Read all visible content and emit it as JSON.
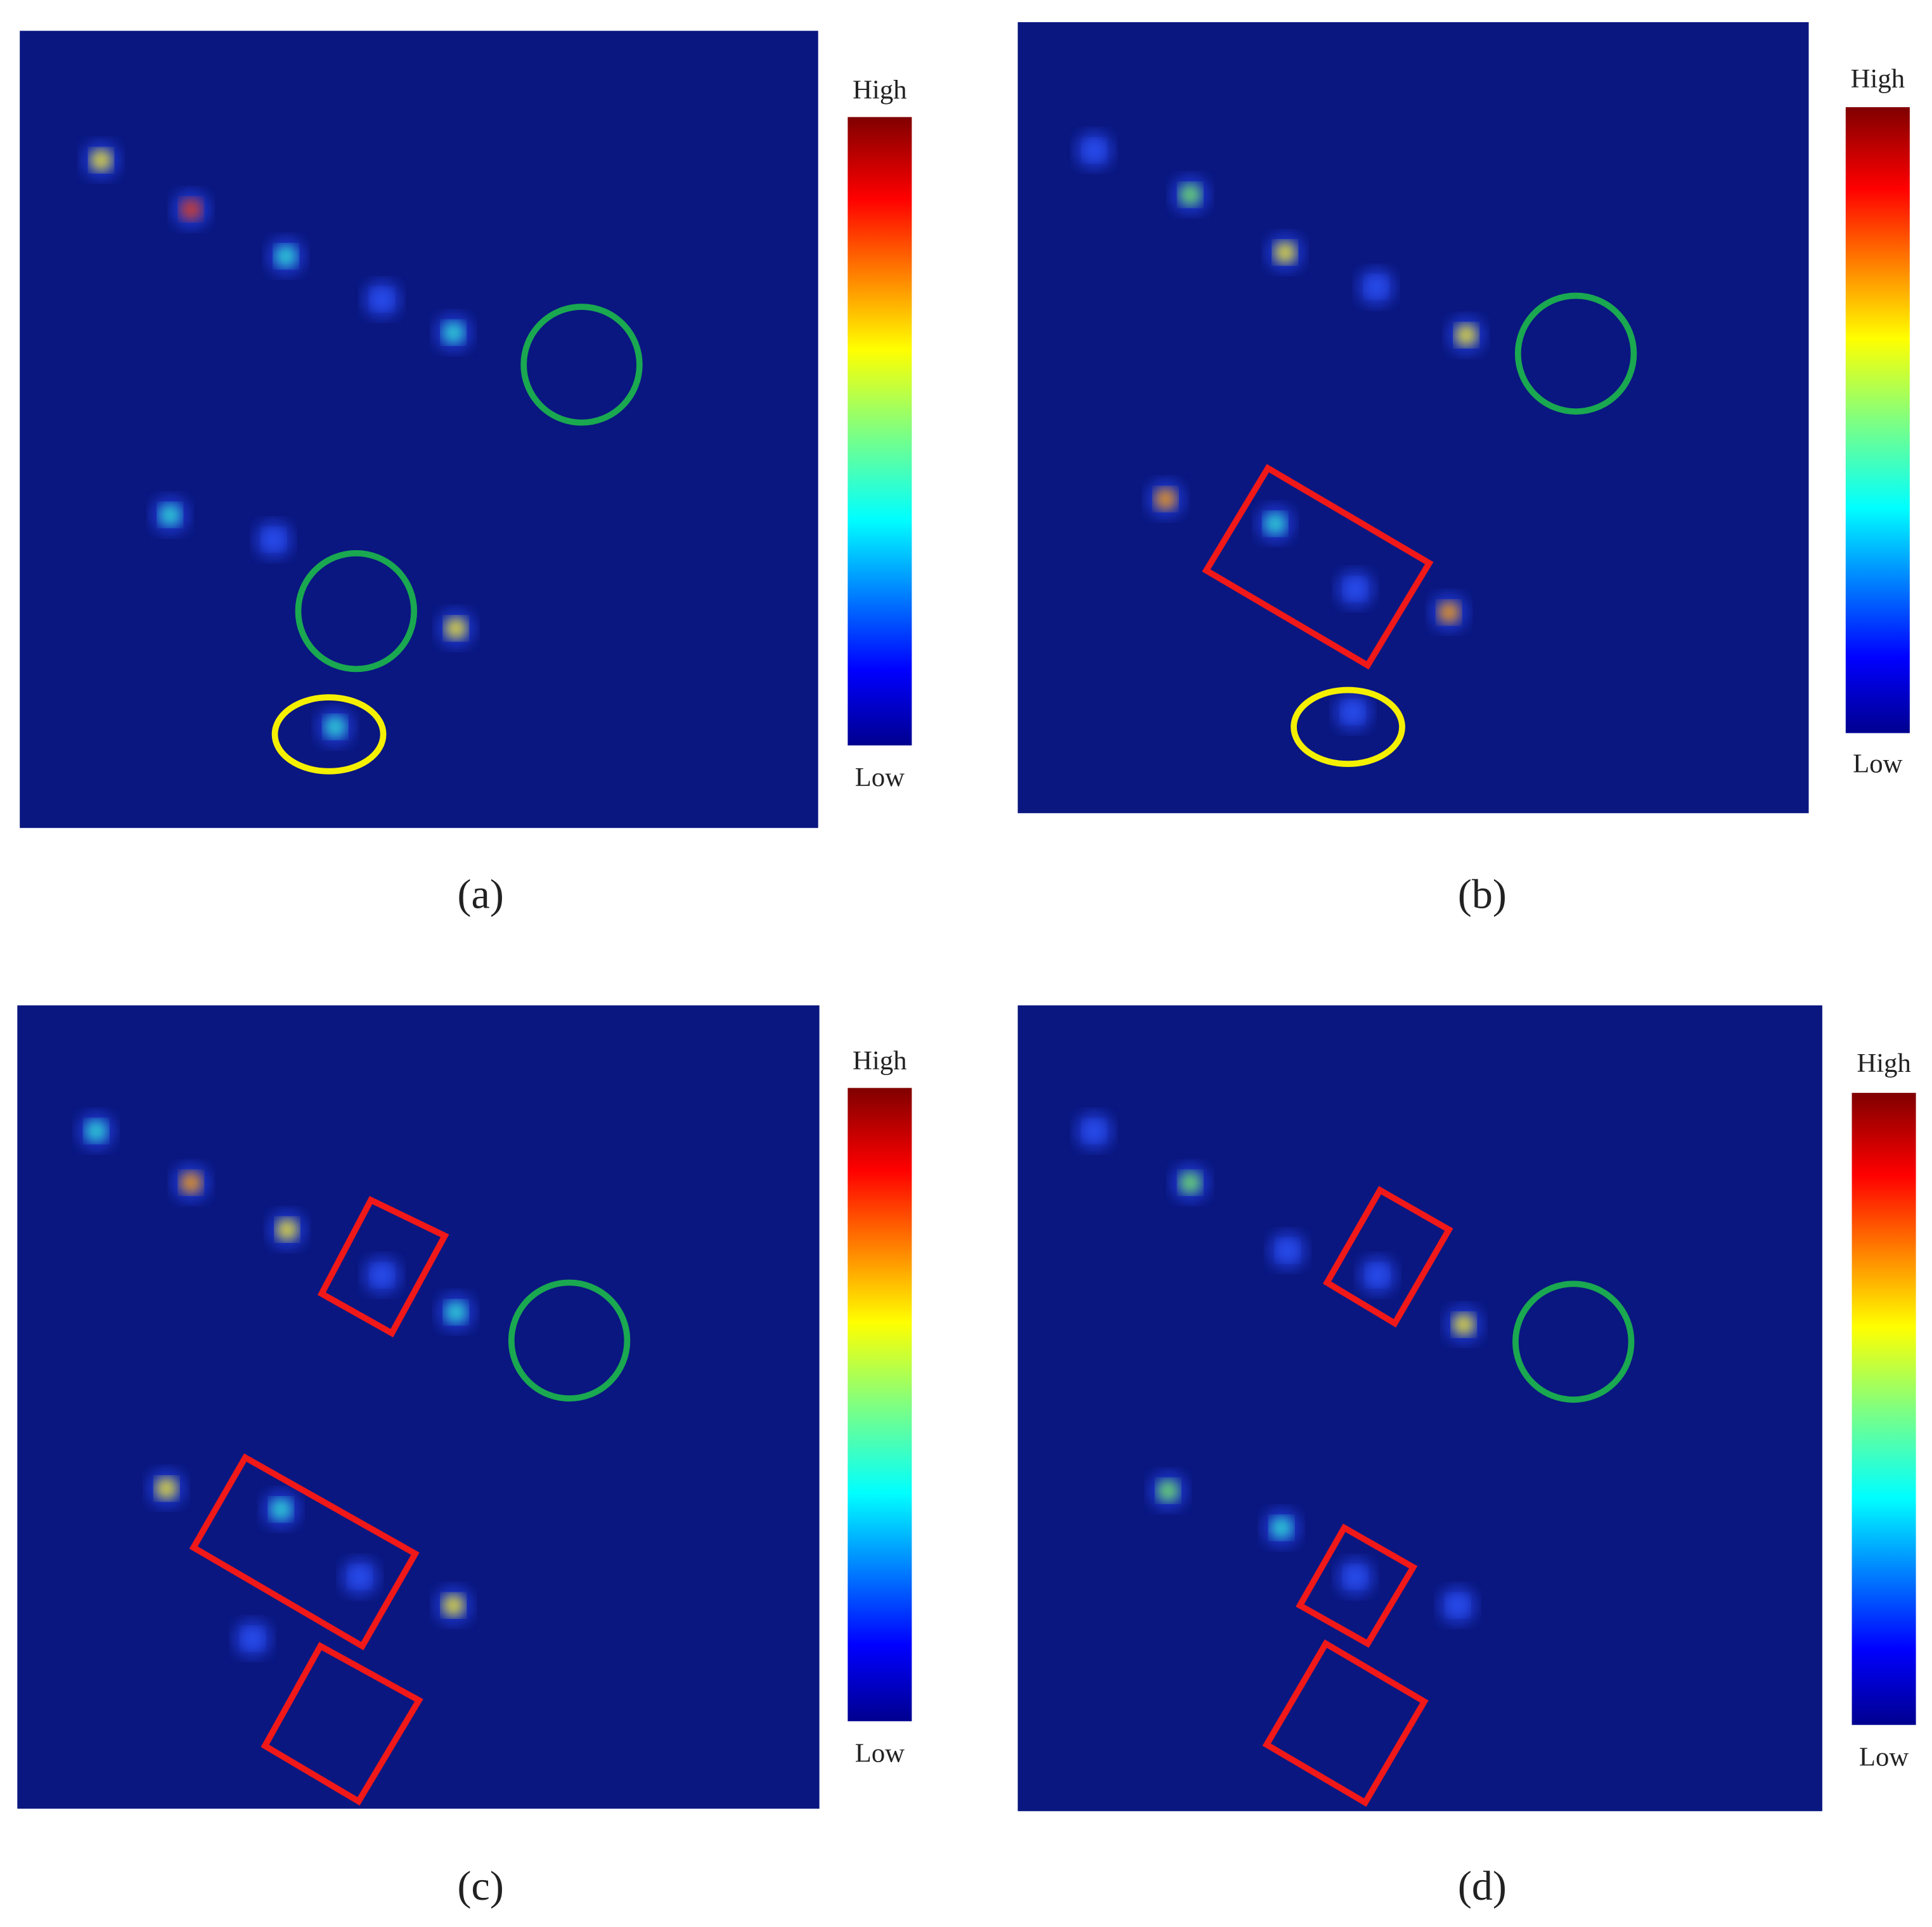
{
  "panels": [
    {
      "caption": "(a)",
      "colorbar": {
        "high": "High",
        "low": "Low"
      }
    },
    {
      "caption": "(b)",
      "colorbar": {
        "high": "High",
        "low": "Low"
      }
    },
    {
      "caption": "(c)",
      "colorbar": {
        "high": "High",
        "low": "Low"
      }
    },
    {
      "caption": "(d)",
      "colorbar": {
        "high": "High",
        "low": "Low"
      }
    }
  ]
}
